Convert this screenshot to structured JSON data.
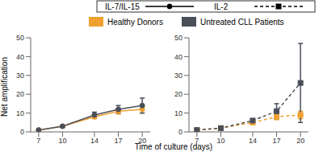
{
  "chart_data": [
    {
      "type": "line",
      "condition": "IL-7/IL-15",
      "line_style": "solid",
      "marker": "circle",
      "ylabel": "Net amplification",
      "xlabel": "Time of culture (days)",
      "x": [
        7,
        10,
        14,
        17,
        20
      ],
      "xlim": [
        6,
        21
      ],
      "xticks": [
        7,
        10,
        14,
        17,
        20
      ],
      "ylim": [
        0,
        50
      ],
      "yticks": [
        0,
        10,
        20,
        30,
        40,
        50
      ],
      "series": [
        {
          "name": "Healthy Donors",
          "color": "#f0a030",
          "values": [
            1,
            3,
            8,
            11,
            12
          ],
          "error": [
            0.3,
            0.5,
            1,
            1.5,
            2
          ]
        },
        {
          "name": "Untreated CLL Patients",
          "color": "#4a4f5a",
          "values": [
            1,
            3,
            9,
            12,
            14
          ],
          "error": [
            0.3,
            0.5,
            1.5,
            2,
            4
          ]
        }
      ]
    },
    {
      "type": "line",
      "condition": "IL-2",
      "line_style": "dashed",
      "marker": "square",
      "x": [
        7,
        10,
        14,
        17,
        20
      ],
      "xlim": [
        6,
        21
      ],
      "xticks": [
        7,
        10,
        14,
        17,
        20
      ],
      "ylim": [
        0,
        50
      ],
      "yticks": [
        0,
        10,
        20,
        30,
        40,
        50
      ],
      "series": [
        {
          "name": "Healthy Donors",
          "color": "#f0a030",
          "values": [
            1,
            2,
            5,
            8,
            9
          ],
          "error": [
            0.3,
            0.5,
            1,
            1.5,
            2
          ]
        },
        {
          "name": "Untreated CLL Patients",
          "color": "#4a4f5a",
          "values": [
            1,
            2,
            6,
            11,
            26
          ],
          "error": [
            0.3,
            0.5,
            1,
            4,
            21
          ]
        }
      ]
    }
  ]
}
